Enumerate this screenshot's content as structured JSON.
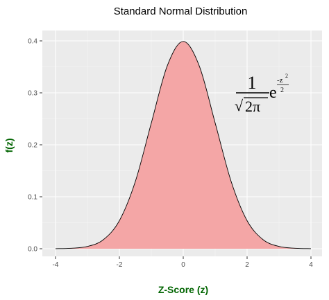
{
  "chart_data": {
    "type": "area",
    "title": "Standard Normal Distribution",
    "xlabel": "Z-Score (z)",
    "ylabel": "f(z)",
    "xlim": [
      -4,
      4
    ],
    "ylim": [
      0,
      0.4
    ],
    "x_ticks": [
      -4,
      -2,
      0,
      2,
      4
    ],
    "y_ticks": [
      0.0,
      0.1,
      0.2,
      0.3,
      0.4
    ],
    "x_tick_labels": [
      "-4",
      "-2",
      "0",
      "2",
      "4"
    ],
    "y_tick_labels": [
      "0.0",
      "0.1",
      "0.2",
      "0.3",
      "0.4"
    ],
    "grid": true,
    "panel_background": "#ebebeb",
    "fill_color": "#f4a6a6",
    "line_color": "#000000",
    "axis_label_color": "#006400",
    "x": [
      -4.0,
      -3.5,
      -3.0,
      -2.5,
      -2.0,
      -1.5,
      -1.0,
      -0.5,
      0.0,
      0.5,
      1.0,
      1.5,
      2.0,
      2.5,
      3.0,
      3.5,
      4.0
    ],
    "y": [
      0.0001,
      0.0009,
      0.0044,
      0.0175,
      0.054,
      0.1295,
      0.242,
      0.3521,
      0.3989,
      0.3521,
      0.242,
      0.1295,
      0.054,
      0.0175,
      0.0044,
      0.0009,
      0.0001
    ],
    "annotation": {
      "numerator": "1",
      "radical": "√",
      "radicand": "2π",
      "base": "e",
      "exponent_numerator": "-z",
      "exponent_power": "2",
      "exponent_denominator": "2"
    }
  }
}
